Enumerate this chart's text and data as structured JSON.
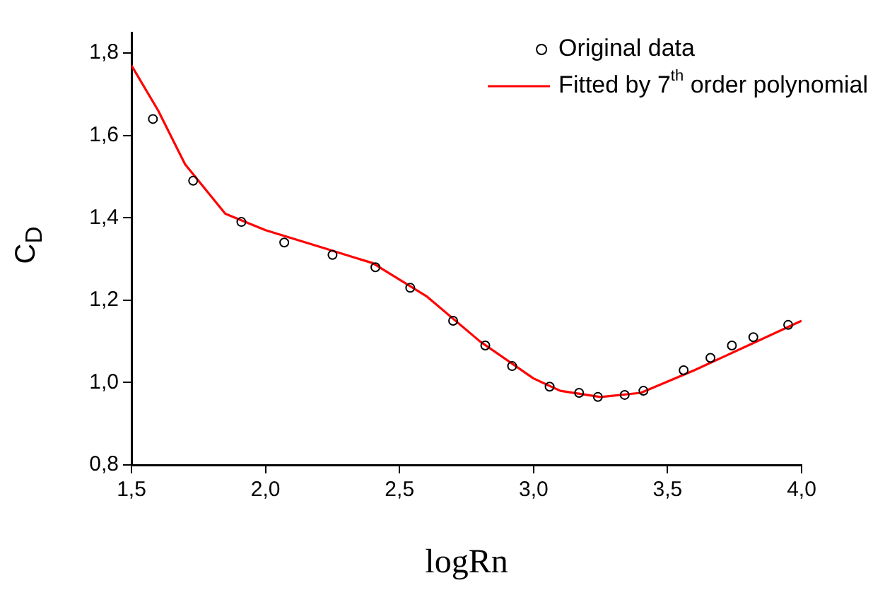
{
  "chart_data": {
    "type": "scatter",
    "xlabel": "logRn",
    "ylabel": "C$_{D}$",
    "xlim": [
      1.5,
      4.0
    ],
    "ylim": [
      0.8,
      1.85
    ],
    "xticks": [
      {
        "value": 1.5,
        "label": "1,5"
      },
      {
        "value": 2.0,
        "label": "2,0"
      },
      {
        "value": 2.5,
        "label": "2,5"
      },
      {
        "value": 3.0,
        "label": "3,0"
      },
      {
        "value": 3.5,
        "label": "3,5"
      },
      {
        "value": 4.0,
        "label": "4,0"
      }
    ],
    "yticks": [
      {
        "value": 0.8,
        "label": "0,8"
      },
      {
        "value": 1.0,
        "label": "1,0"
      },
      {
        "value": 1.2,
        "label": "1,2"
      },
      {
        "value": 1.4,
        "label": "1,4"
      },
      {
        "value": 1.6,
        "label": "1,6"
      },
      {
        "value": 1.8,
        "label": "1,8"
      }
    ],
    "grid": false,
    "legend": "top right",
    "series": [
      {
        "name": "Original data",
        "color": "#000000",
        "marker": "circle",
        "x": [
          1.58,
          1.73,
          1.91,
          2.07,
          2.25,
          2.41,
          2.54,
          2.7,
          2.82,
          2.92,
          3.06,
          3.17,
          3.24,
          3.34,
          3.41,
          3.56,
          3.66,
          3.74,
          3.82,
          3.95
        ],
        "values": [
          1.64,
          1.49,
          1.39,
          1.34,
          1.31,
          1.28,
          1.23,
          1.15,
          1.09,
          1.04,
          0.99,
          0.975,
          0.965,
          0.97,
          0.98,
          1.03,
          1.06,
          1.09,
          1.11,
          1.14
        ]
      },
      {
        "name": "Fitted by 7$^{th}$ order polynomial",
        "type": "line",
        "color": "#ff0000",
        "marker": "none",
        "line_style": "solid",
        "x": [
          1.5,
          1.6,
          1.7,
          1.85,
          2.0,
          2.2,
          2.4,
          2.6,
          2.8,
          3.0,
          3.1,
          3.25,
          3.4,
          3.6,
          3.8,
          4.0
        ],
        "values": [
          1.77,
          1.66,
          1.53,
          1.41,
          1.37,
          1.33,
          1.29,
          1.21,
          1.1,
          1.01,
          0.98,
          0.965,
          0.975,
          1.03,
          1.09,
          1.15
        ]
      }
    ]
  }
}
